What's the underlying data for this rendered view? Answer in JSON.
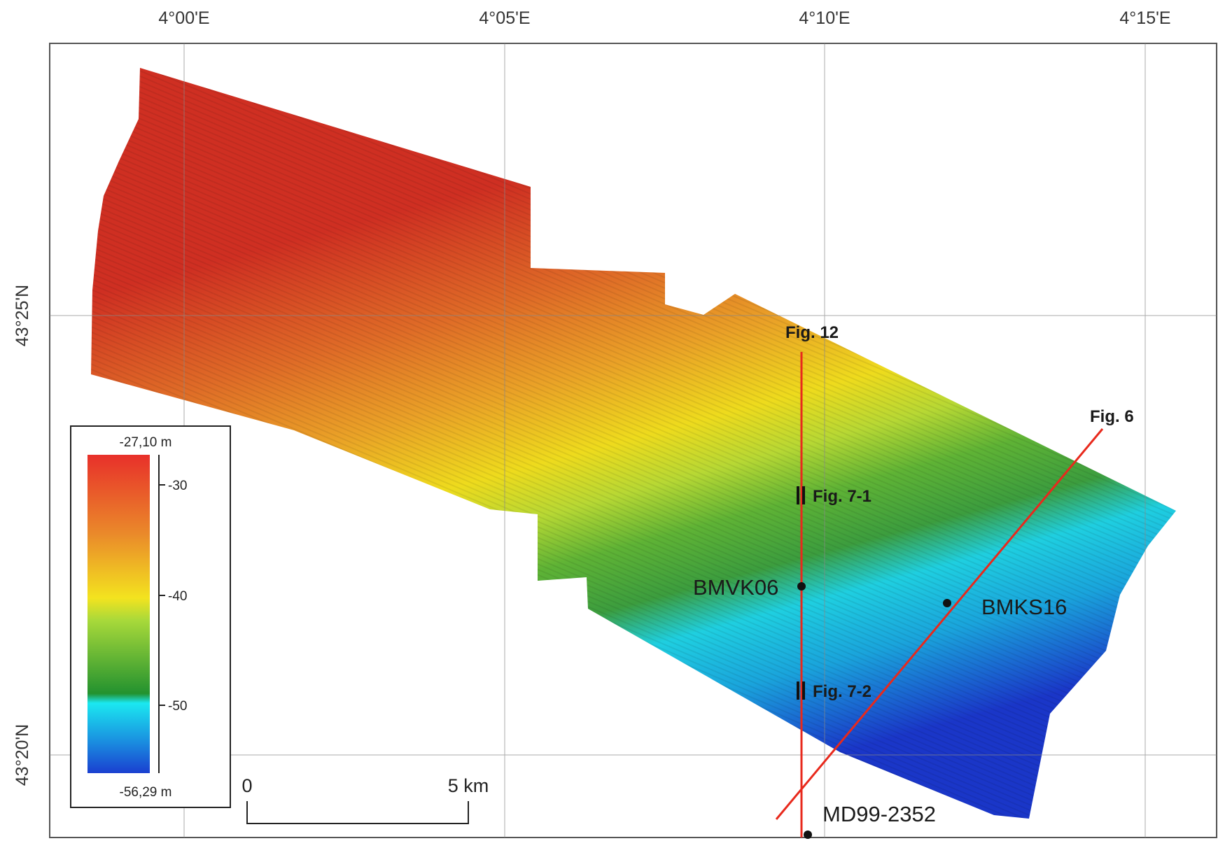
{
  "map": {
    "longitude_labels": [
      "4°00'E",
      "4°05'E",
      "4°10'E",
      "4°15'E"
    ],
    "latitude_labels": [
      "43°25'N",
      "43°20'N"
    ],
    "colors": {
      "shallow": "#d62e1f",
      "mid_orange": "#e88a25",
      "mid_yellow": "#f2e21a",
      "mid_green": "#4aa52e",
      "deep_cyan": "#1ad7e4",
      "deepest": "#1a3ccc",
      "profile_line": "#e8291c"
    },
    "legend": {
      "max_label": "-27,10 m",
      "min_label": "-56,29 m",
      "ticks": [
        "-30",
        "-40",
        "-50"
      ]
    },
    "scale_bar": {
      "start": "0",
      "end": "5 km"
    },
    "profiles": [
      {
        "name": "Fig. 12"
      },
      {
        "name": "Fig. 6"
      }
    ],
    "segments": [
      {
        "name": "Fig. 7-1"
      },
      {
        "name": "Fig. 7-2"
      }
    ],
    "stations": [
      {
        "name": "BMVK06"
      },
      {
        "name": "BMKS16"
      },
      {
        "name": "MD99-2352"
      }
    ]
  }
}
